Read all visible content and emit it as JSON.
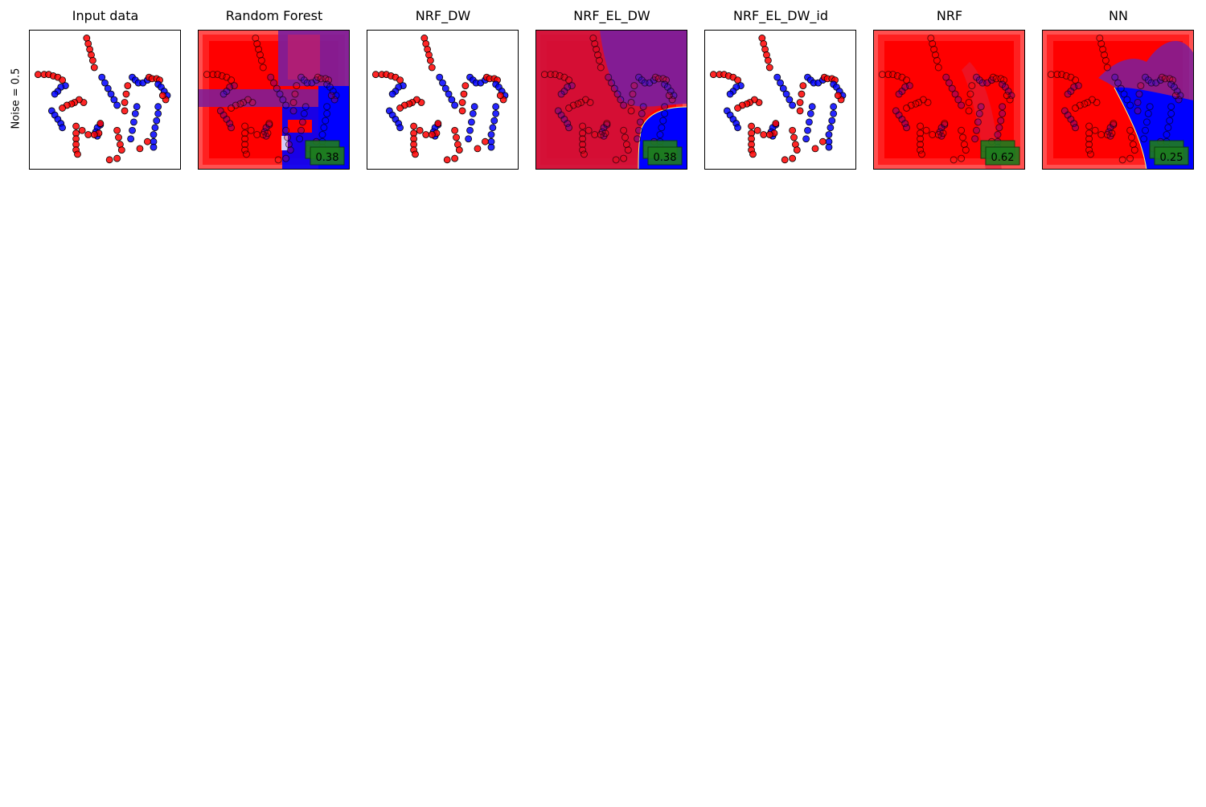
{
  "row_label": "Noise = 0.5",
  "colors": {
    "class0": "#ff0000",
    "class1": "#0000ff",
    "score_box": "#1e7d1e",
    "score_edge": "#0a3a0a",
    "mix": "#7a1e9e"
  },
  "chart_data": [
    {
      "type": "scatter",
      "title": "Input data",
      "region": "none",
      "score": ""
    },
    {
      "type": "scatter",
      "title": "Random Forest",
      "region": "rf",
      "score": "0.38"
    },
    {
      "type": "scatter",
      "title": "NRF_DW",
      "region": "none",
      "score": ""
    },
    {
      "type": "scatter",
      "title": "NRF_EL_DW",
      "region": "eldw",
      "score": "0.38"
    },
    {
      "type": "scatter",
      "title": "NRF_EL_DW_id",
      "region": "none",
      "score": ""
    },
    {
      "type": "scatter",
      "title": "NRF",
      "region": "nrf",
      "score": "0.62"
    },
    {
      "type": "scatter",
      "title": "NN",
      "region": "nn",
      "score": "0.25"
    }
  ],
  "points": [
    {
      "x": 0.38,
      "y": 0.06,
      "c": 0
    },
    {
      "x": 0.39,
      "y": 0.1,
      "c": 0
    },
    {
      "x": 0.4,
      "y": 0.14,
      "c": 0
    },
    {
      "x": 0.41,
      "y": 0.18,
      "c": 0
    },
    {
      "x": 0.42,
      "y": 0.22,
      "c": 0
    },
    {
      "x": 0.43,
      "y": 0.27,
      "c": 0
    },
    {
      "x": 0.06,
      "y": 0.32,
      "c": 0
    },
    {
      "x": 0.1,
      "y": 0.32,
      "c": 0
    },
    {
      "x": 0.13,
      "y": 0.32,
      "c": 0
    },
    {
      "x": 0.16,
      "y": 0.33,
      "c": 0
    },
    {
      "x": 0.19,
      "y": 0.34,
      "c": 0
    },
    {
      "x": 0.22,
      "y": 0.36,
      "c": 0
    },
    {
      "x": 0.24,
      "y": 0.4,
      "c": 1
    },
    {
      "x": 0.21,
      "y": 0.41,
      "c": 1
    },
    {
      "x": 0.19,
      "y": 0.44,
      "c": 1
    },
    {
      "x": 0.17,
      "y": 0.46,
      "c": 1
    },
    {
      "x": 0.36,
      "y": 0.52,
      "c": 0
    },
    {
      "x": 0.33,
      "y": 0.5,
      "c": 0
    },
    {
      "x": 0.3,
      "y": 0.52,
      "c": 0
    },
    {
      "x": 0.28,
      "y": 0.53,
      "c": 0
    },
    {
      "x": 0.25,
      "y": 0.54,
      "c": 0
    },
    {
      "x": 0.22,
      "y": 0.56,
      "c": 0
    },
    {
      "x": 0.15,
      "y": 0.58,
      "c": 1
    },
    {
      "x": 0.17,
      "y": 0.61,
      "c": 1
    },
    {
      "x": 0.19,
      "y": 0.64,
      "c": 1
    },
    {
      "x": 0.21,
      "y": 0.67,
      "c": 1
    },
    {
      "x": 0.22,
      "y": 0.7,
      "c": 1
    },
    {
      "x": 0.48,
      "y": 0.34,
      "c": 1
    },
    {
      "x": 0.5,
      "y": 0.38,
      "c": 1
    },
    {
      "x": 0.52,
      "y": 0.42,
      "c": 1
    },
    {
      "x": 0.54,
      "y": 0.46,
      "c": 1
    },
    {
      "x": 0.56,
      "y": 0.5,
      "c": 1
    },
    {
      "x": 0.58,
      "y": 0.54,
      "c": 1
    },
    {
      "x": 0.65,
      "y": 0.4,
      "c": 0
    },
    {
      "x": 0.64,
      "y": 0.46,
      "c": 0
    },
    {
      "x": 0.63,
      "y": 0.52,
      "c": 0
    },
    {
      "x": 0.63,
      "y": 0.58,
      "c": 0
    },
    {
      "x": 0.68,
      "y": 0.34,
      "c": 1
    },
    {
      "x": 0.7,
      "y": 0.36,
      "c": 1
    },
    {
      "x": 0.72,
      "y": 0.38,
      "c": 1
    },
    {
      "x": 0.75,
      "y": 0.38,
      "c": 1
    },
    {
      "x": 0.78,
      "y": 0.36,
      "c": 1
    },
    {
      "x": 0.79,
      "y": 0.34,
      "c": 0
    },
    {
      "x": 0.81,
      "y": 0.35,
      "c": 0
    },
    {
      "x": 0.84,
      "y": 0.35,
      "c": 0
    },
    {
      "x": 0.86,
      "y": 0.36,
      "c": 0
    },
    {
      "x": 0.85,
      "y": 0.39,
      "c": 1
    },
    {
      "x": 0.87,
      "y": 0.41,
      "c": 1
    },
    {
      "x": 0.89,
      "y": 0.44,
      "c": 1
    },
    {
      "x": 0.91,
      "y": 0.47,
      "c": 1
    },
    {
      "x": 0.9,
      "y": 0.5,
      "c": 0
    },
    {
      "x": 0.88,
      "y": 0.47,
      "c": 0
    },
    {
      "x": 0.71,
      "y": 0.55,
      "c": 1
    },
    {
      "x": 0.7,
      "y": 0.6,
      "c": 1
    },
    {
      "x": 0.69,
      "y": 0.66,
      "c": 1
    },
    {
      "x": 0.68,
      "y": 0.72,
      "c": 1
    },
    {
      "x": 0.67,
      "y": 0.78,
      "c": 1
    },
    {
      "x": 0.85,
      "y": 0.55,
      "c": 1
    },
    {
      "x": 0.85,
      "y": 0.6,
      "c": 1
    },
    {
      "x": 0.84,
      "y": 0.65,
      "c": 1
    },
    {
      "x": 0.83,
      "y": 0.7,
      "c": 1
    },
    {
      "x": 0.82,
      "y": 0.75,
      "c": 1
    },
    {
      "x": 0.82,
      "y": 0.8,
      "c": 1
    },
    {
      "x": 0.82,
      "y": 0.84,
      "c": 1
    },
    {
      "x": 0.78,
      "y": 0.8,
      "c": 0
    },
    {
      "x": 0.73,
      "y": 0.85,
      "c": 0
    },
    {
      "x": 0.47,
      "y": 0.68,
      "c": 1
    },
    {
      "x": 0.45,
      "y": 0.7,
      "c": 1
    },
    {
      "x": 0.44,
      "y": 0.73,
      "c": 1
    },
    {
      "x": 0.45,
      "y": 0.76,
      "c": 1
    },
    {
      "x": 0.47,
      "y": 0.67,
      "c": 0
    },
    {
      "x": 0.46,
      "y": 0.74,
      "c": 0
    },
    {
      "x": 0.43,
      "y": 0.75,
      "c": 0
    },
    {
      "x": 0.39,
      "y": 0.75,
      "c": 0
    },
    {
      "x": 0.35,
      "y": 0.72,
      "c": 0
    },
    {
      "x": 0.31,
      "y": 0.69,
      "c": 0
    },
    {
      "x": 0.31,
      "y": 0.74,
      "c": 0
    },
    {
      "x": 0.31,
      "y": 0.78,
      "c": 0
    },
    {
      "x": 0.31,
      "y": 0.82,
      "c": 0
    },
    {
      "x": 0.31,
      "y": 0.86,
      "c": 0
    },
    {
      "x": 0.32,
      "y": 0.89,
      "c": 0
    },
    {
      "x": 0.58,
      "y": 0.72,
      "c": 0
    },
    {
      "x": 0.59,
      "y": 0.77,
      "c": 0
    },
    {
      "x": 0.6,
      "y": 0.82,
      "c": 0
    },
    {
      "x": 0.61,
      "y": 0.86,
      "c": 0
    },
    {
      "x": 0.58,
      "y": 0.92,
      "c": 0
    },
    {
      "x": 0.53,
      "y": 0.93,
      "c": 0
    }
  ]
}
